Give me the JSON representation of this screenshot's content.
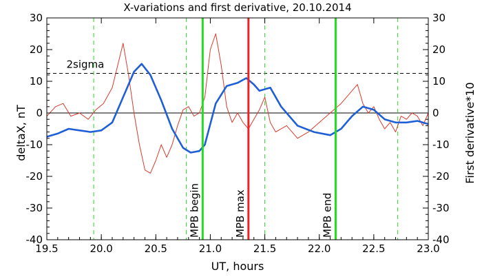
{
  "chart_data": {
    "type": "line",
    "title": "X-variations and first derivative, 20.10.2014",
    "xlabel": "UT, hours",
    "ylabel_left": "deltaX, nT",
    "ylabel_right": "First derivative*10",
    "xlim": [
      19.5,
      23.0
    ],
    "ylim_left": [
      -40,
      30
    ],
    "ylim_right": [
      -40,
      30
    ],
    "x_ticks": [
      "19.5",
      "20.0",
      "20.5",
      "21.0",
      "21.5",
      "22.0",
      "22.5",
      "23.0"
    ],
    "y_ticks": [
      "30",
      "20",
      "10",
      "0",
      "-10",
      "-20",
      "-30",
      "-40"
    ],
    "colors": {
      "deltaX": "#1f5fd6",
      "derivative": "#d93a2b",
      "mpb_begin_end": "#22dd22",
      "mpb_max": "#ee2222",
      "dashed_markers": "#22dd22",
      "sigma_line": "#000000"
    },
    "sigma_level": 12.5,
    "sigma_label": "2sigma",
    "zero_line": 0,
    "dashed_verticals": [
      19.93,
      20.78,
      21.5,
      22.72
    ],
    "vertical_markers": [
      {
        "x": 20.93,
        "label": "MPB begin",
        "kind": "begin"
      },
      {
        "x": 21.35,
        "label": "MPB max",
        "kind": "max"
      },
      {
        "x": 22.15,
        "label": "MPB end",
        "kind": "end"
      }
    ],
    "series": [
      {
        "key": "deltaX",
        "name": "deltaX, nT",
        "x": [
          19.5,
          19.6,
          19.7,
          19.8,
          19.9,
          20.0,
          20.1,
          20.2,
          20.3,
          20.37,
          20.45,
          20.55,
          20.65,
          20.75,
          20.82,
          20.9,
          20.95,
          21.05,
          21.15,
          21.25,
          21.33,
          21.4,
          21.45,
          21.55,
          21.65,
          21.8,
          21.95,
          22.1,
          22.2,
          22.3,
          22.4,
          22.5,
          22.6,
          22.7,
          22.8,
          22.9,
          23.0
        ],
        "values": [
          -7.5,
          -6.5,
          -5,
          -5.5,
          -6,
          -5.5,
          -3,
          5,
          13,
          15.5,
          12,
          4,
          -5,
          -11,
          -12.5,
          -12,
          -10,
          3,
          8.5,
          9.5,
          11,
          9,
          7,
          8,
          2,
          -4,
          -6,
          -7,
          -5,
          -1,
          2,
          1,
          -2,
          -3,
          -3,
          -2.5,
          -3.5
        ]
      },
      {
        "key": "derivative",
        "name": "First derivative*10",
        "x": [
          19.5,
          19.58,
          19.65,
          19.72,
          19.8,
          19.88,
          19.95,
          20.02,
          20.1,
          20.15,
          20.2,
          20.25,
          20.3,
          20.35,
          20.4,
          20.45,
          20.5,
          20.55,
          20.6,
          20.65,
          20.7,
          20.75,
          20.8,
          20.85,
          20.9,
          20.95,
          21.0,
          21.05,
          21.1,
          21.15,
          21.2,
          21.25,
          21.3,
          21.35,
          21.4,
          21.45,
          21.5,
          21.55,
          21.6,
          21.7,
          21.8,
          21.9,
          22.0,
          22.1,
          22.2,
          22.3,
          22.35,
          22.4,
          22.45,
          22.5,
          22.55,
          22.6,
          22.65,
          22.7,
          22.75,
          22.8,
          22.85,
          22.9,
          22.95,
          23.0
        ],
        "values": [
          -1,
          2,
          3,
          -1,
          0,
          -2,
          1,
          3,
          8,
          15,
          22,
          12,
          0,
          -10,
          -18,
          -19,
          -15,
          -10,
          -14,
          -10,
          -4,
          1,
          2,
          -1,
          0,
          5,
          20,
          25,
          15,
          2,
          -3,
          0,
          -3,
          -5,
          -2,
          1,
          5,
          -3,
          -6,
          -4,
          -8,
          -6,
          -3,
          0,
          3,
          7,
          9,
          3,
          0,
          2,
          -2,
          -5,
          -3,
          -6,
          -1,
          -2,
          0,
          -1,
          -4,
          0
        ]
      }
    ]
  }
}
